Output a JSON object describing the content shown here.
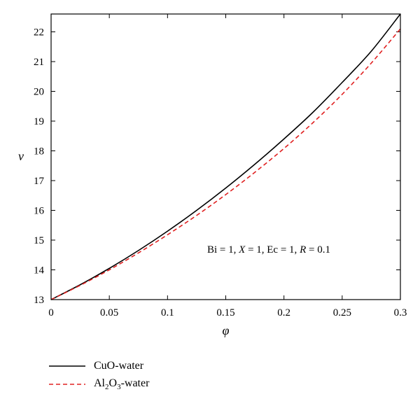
{
  "chart_data": {
    "type": "line",
    "xlabel": "φ",
    "ylabel": "ν",
    "xlim": [
      0,
      0.3
    ],
    "ylim": [
      13,
      22.6
    ],
    "x_ticks": [
      "0",
      "0.05",
      "0.1",
      "0.15",
      "0.2",
      "0.25",
      "0.3"
    ],
    "y_ticks": [
      "13",
      "14",
      "15",
      "16",
      "17",
      "18",
      "19",
      "20",
      "21",
      "22"
    ],
    "annotation": {
      "parts": [
        {
          "text": "Bi = 1, ",
          "italic": false
        },
        {
          "text": "X",
          "italic": true
        },
        {
          "text": " = 1, Ec = 1, ",
          "italic": false
        },
        {
          "text": "R",
          "italic": true
        },
        {
          "text": " = 0.1",
          "italic": false
        }
      ]
    },
    "series": [
      {
        "name": "CuO-water",
        "color": "#000000",
        "style": "solid",
        "x": [
          0,
          0.025,
          0.05,
          0.075,
          0.1,
          0.125,
          0.15,
          0.175,
          0.2,
          0.225,
          0.25,
          0.275,
          0.3
        ],
        "y": [
          13.0,
          13.5,
          14.05,
          14.65,
          15.3,
          16.0,
          16.75,
          17.55,
          18.4,
          19.3,
          20.3,
          21.35,
          22.6
        ]
      },
      {
        "name": "Al2O3-water",
        "color": "#e02020",
        "style": "dashed",
        "x": [
          0,
          0.025,
          0.05,
          0.075,
          0.1,
          0.125,
          0.15,
          0.175,
          0.2,
          0.225,
          0.25,
          0.275,
          0.3
        ],
        "y": [
          13.0,
          13.48,
          14.0,
          14.57,
          15.18,
          15.83,
          16.53,
          17.28,
          18.08,
          18.95,
          19.9,
          20.95,
          22.1
        ]
      }
    ],
    "legend": {
      "position": "bottom-left",
      "entries": [
        {
          "base": "CuO-water"
        },
        {
          "prefix": "Al",
          "sub1": "2",
          "mid": "O",
          "sub2": "3",
          "suffix": "-water"
        }
      ]
    }
  }
}
